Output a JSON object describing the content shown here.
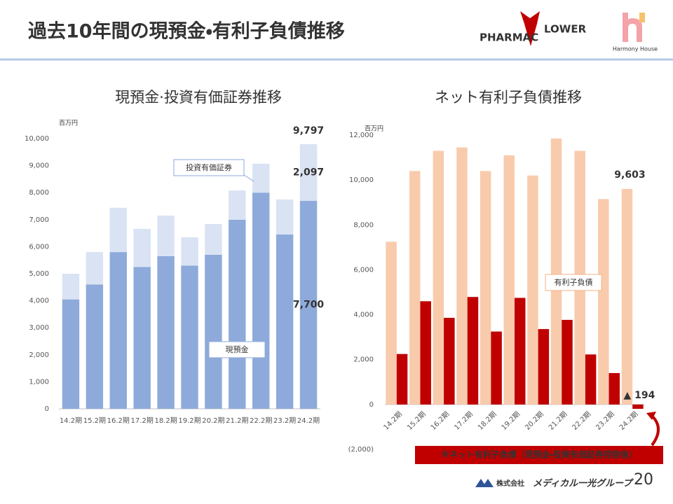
{
  "header": {
    "title": "過去10年間の現預金・有利子負債推移",
    "logos": [
      "PHARMAC",
      "LOWER",
      "Harmony House"
    ]
  },
  "chart_data": [
    {
      "type": "stacked_bar",
      "title": "現預金·投資有価証券推移",
      "y_label": "百万円",
      "categories": [
        "14.2期",
        "15.2期",
        "16.2期",
        "17.2期",
        "18.2期",
        "19.2期",
        "20.2期",
        "21.2期",
        "22.2期",
        "23.2期",
        "24.2期"
      ],
      "series": [
        {
          "name": "現預金",
          "color": "#8eaadb",
          "values": [
            4050,
            4600,
            5800,
            5250,
            5650,
            5300,
            5700,
            7000,
            8000,
            6450,
            7700
          ],
          "value_labels": [
            null,
            null,
            null,
            null,
            null,
            null,
            null,
            null,
            null,
            null,
            "7,700"
          ]
        },
        {
          "name": "投資有価証券",
          "color": "#dae3f3",
          "values": [
            950,
            1200,
            1640,
            1410,
            1500,
            1050,
            1140,
            1080,
            1070,
            1300,
            2097
          ],
          "value_labels": [
            null,
            null,
            null,
            null,
            null,
            null,
            null,
            null,
            null,
            null,
            "2,097"
          ]
        }
      ],
      "total_labels": [
        {
          "index": 10,
          "value": 9797,
          "label": "9,797"
        }
      ],
      "ylim": [
        0,
        10000
      ],
      "yticks": [
        0,
        {
          "value": 1000,
          "label": "1,000"
        },
        {
          "value": 2000,
          "label": "2,000"
        },
        {
          "value": 3000,
          "label": "3,000"
        },
        {
          "value": 4000,
          "label": "4,000"
        },
        {
          "value": 5000,
          "label": "5,000"
        },
        {
          "value": 6000,
          "label": "6,000"
        },
        {
          "value": 7000,
          "label": "7,000"
        },
        {
          "value": 8000,
          "label": "8,000"
        },
        {
          "value": 9000,
          "label": "9,000"
        },
        {
          "value": 10000,
          "label": "10,000"
        }
      ],
      "grid": false
    },
    {
      "type": "grouped_bar",
      "title": "ネット有利子負債推移",
      "y_label": "百万円",
      "categories": [
        "14.2期",
        "15.2期",
        "16.2期",
        "17.2期",
        "18.2期",
        "19.2期",
        "20.2期",
        "21.2期",
        "22.2期",
        "23.2期",
        "24.2期"
      ],
      "series": [
        {
          "name": "有利子負債",
          "color": "#f8cbad",
          "values": [
            7250,
            10400,
            11300,
            11450,
            10400,
            11100,
            10200,
            11850,
            11300,
            9150,
            9603
          ],
          "value_labels": [
            null,
            null,
            null,
            null,
            null,
            null,
            null,
            null,
            null,
            null,
            "9,603"
          ]
        },
        {
          "name": "※ネット有利子負債（現預金・投資有価証券控除後）",
          "color": "#c00000",
          "values": [
            2250,
            4600,
            3860,
            4790,
            3250,
            4750,
            3360,
            3770,
            2230,
            1400,
            -194
          ],
          "value_labels": [
            null,
            null,
            null,
            null,
            null,
            null,
            null,
            null,
            null,
            null,
            "▲ 194"
          ]
        }
      ],
      "ylim": [
        -2000,
        12000
      ],
      "yticks": [
        {
          "value": -2000,
          "label": "(2,000)"
        },
        0,
        {
          "value": 2000,
          "label": "2,000"
        },
        {
          "value": 4000,
          "label": "4,000"
        },
        {
          "value": 6000,
          "label": "6,000"
        },
        {
          "value": 8000,
          "label": "8,000"
        },
        {
          "value": 10000,
          "label": "10,000"
        },
        {
          "value": 12000,
          "label": "12,000"
        }
      ],
      "grid": false
    }
  ],
  "footer": {
    "company": "株式会社",
    "brand": "メディカル一光グループ",
    "page": "20"
  }
}
